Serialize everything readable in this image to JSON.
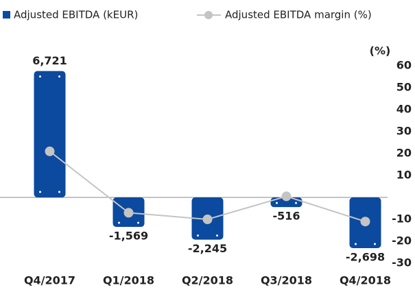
{
  "chart_data": {
    "type": "bar_line",
    "categories": [
      "Q4/2017",
      "Q1/2018",
      "Q2/2018",
      "Q3/2018",
      "Q4/2018"
    ],
    "series": [
      {
        "name": "Adjusted EBITDA (kEUR)",
        "type": "bar",
        "color": "#0b4a9e",
        "values": [
          6721,
          -1569,
          -2245,
          -516,
          -2698
        ],
        "value_labels": [
          "6,721",
          "-1,569",
          "-2,245",
          "-516",
          "-2,698"
        ]
      },
      {
        "name": "Adjusted EBITDA margin (%)",
        "type": "line",
        "axis": "y2",
        "color": "#c4c4c4",
        "values": [
          21,
          -7,
          -10,
          0.5,
          -11
        ]
      }
    ],
    "ylim": [
      -3500,
      7000
    ],
    "y2label": "(%)",
    "y2lim": [
      -30,
      60
    ],
    "y2ticks": [
      60,
      50,
      40,
      30,
      20,
      10,
      -10,
      -20,
      -30
    ]
  }
}
